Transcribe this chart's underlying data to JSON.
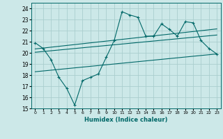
{
  "xlabel": "Humidex (Indice chaleur)",
  "ylabel": "",
  "bg_color": "#cce8e8",
  "grid_color": "#aacece",
  "line_color": "#006868",
  "xlim": [
    -0.5,
    23.5
  ],
  "ylim": [
    15,
    24.5
  ],
  "yticks": [
    15,
    16,
    17,
    18,
    19,
    20,
    21,
    22,
    23,
    24
  ],
  "xticks": [
    0,
    1,
    2,
    3,
    4,
    5,
    6,
    7,
    8,
    9,
    10,
    11,
    12,
    13,
    14,
    15,
    16,
    17,
    18,
    19,
    20,
    21,
    22,
    23
  ],
  "series1_x": [
    0,
    1,
    2,
    3,
    4,
    5,
    6,
    7,
    8,
    9,
    10,
    11,
    12,
    13,
    14,
    15,
    16,
    17,
    18,
    19,
    20,
    21,
    22,
    23
  ],
  "series1_y": [
    20.9,
    20.4,
    19.4,
    17.8,
    16.8,
    15.3,
    17.5,
    17.8,
    18.1,
    19.6,
    21.1,
    23.7,
    23.4,
    23.2,
    21.5,
    21.5,
    22.6,
    22.1,
    21.5,
    22.8,
    22.7,
    21.1,
    20.4,
    19.9
  ],
  "trend1_x": [
    0,
    23
  ],
  "trend1_y": [
    20.05,
    21.6
  ],
  "trend2_x": [
    0,
    23
  ],
  "trend2_y": [
    20.35,
    22.15
  ],
  "trend3_x": [
    0,
    23
  ],
  "trend3_y": [
    18.3,
    19.9
  ]
}
